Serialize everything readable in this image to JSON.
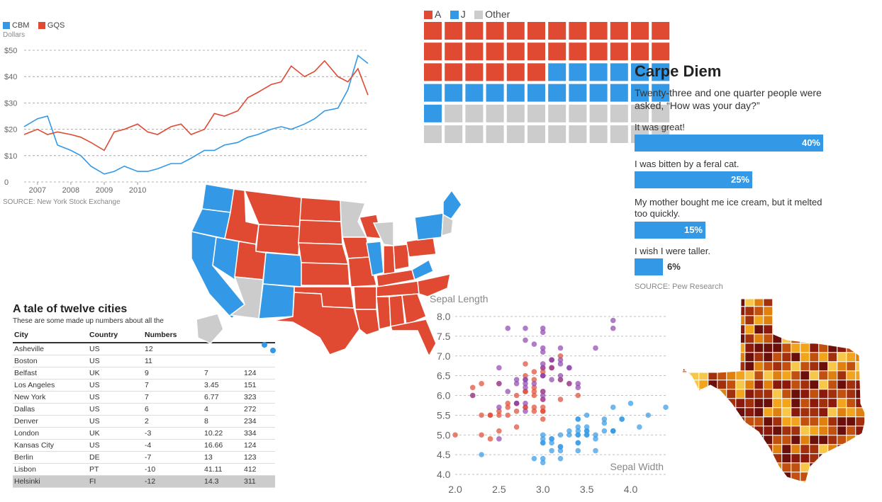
{
  "colors": {
    "red": "#e04a32",
    "blue": "#3399e6",
    "gray": "#cccccc",
    "purple": "#8e44ad"
  },
  "stock": {
    "legend": [
      {
        "name": "CBM",
        "color": "#3399e6"
      },
      {
        "name": "GQS",
        "color": "#e04a32"
      }
    ],
    "y_unit": "Dollars",
    "y_ticks": [
      "$50",
      "$40",
      "$30",
      "$20",
      "$10",
      "0"
    ],
    "x_ticks": [
      "2007",
      "2008",
      "2009",
      "2010"
    ],
    "source": "SOURCE: New York Stock Exchange"
  },
  "waffle": {
    "legend": [
      {
        "name": "A",
        "color": "#e04a32"
      },
      {
        "name": "J",
        "color": "#3399e6"
      },
      {
        "name": "Other",
        "color": "#cccccc"
      }
    ]
  },
  "survey": {
    "title": "Carpe Diem",
    "subtitle": "Twenty-three and one quarter people were asked, “How was your day?”",
    "items": [
      {
        "label": "It was great!",
        "pct": "40%",
        "value": 40
      },
      {
        "label": "I was bitten by a feral cat.",
        "pct": "25%",
        "value": 25
      },
      {
        "label": "My mother bought me ice cream, but it melted too quickly.",
        "pct": "15%",
        "value": 15
      },
      {
        "label": "I wish I were taller.",
        "pct": "6%",
        "value": 6
      }
    ],
    "source": "SOURCE: Pew Research"
  },
  "table": {
    "title": "A tale of twelve cities",
    "subtitle": "These are some made up numbers about all the",
    "headers": [
      "City",
      "Country",
      "Numbers",
      "",
      ""
    ],
    "rows": [
      [
        "Asheville",
        "US",
        "12",
        "",
        ""
      ],
      [
        "Boston",
        "US",
        "11",
        "",
        ""
      ],
      [
        "Belfast",
        "UK",
        "9",
        "7",
        "124"
      ],
      [
        "Los Angeles",
        "US",
        "7",
        "3.45",
        "151"
      ],
      [
        "New York",
        "US",
        "7",
        "6.77",
        "323"
      ],
      [
        "Dallas",
        "US",
        "6",
        "4",
        "272"
      ],
      [
        "Denver",
        "US",
        "2",
        "8",
        "234"
      ],
      [
        "London",
        "UK",
        "-3",
        "10.22",
        "334"
      ],
      [
        "Kansas City",
        "US",
        "-4",
        "16.66",
        "124"
      ],
      [
        "Berlin",
        "DE",
        "-7",
        "13",
        "123"
      ],
      [
        "Lisbon",
        "PT",
        "-10",
        "41.11",
        "412"
      ],
      [
        "Helsinki",
        "FI",
        "-12",
        "14.3",
        "311"
      ]
    ]
  },
  "scatter": {
    "ylabel": "Sepal Length",
    "xlabel": "Sepal Width",
    "y_ticks": [
      "8.0",
      "7.5",
      "7.0",
      "6.5",
      "6.0",
      "5.5",
      "5.0",
      "4.5",
      "4.0"
    ],
    "x_ticks": [
      "2.0",
      "2.5",
      "3.0",
      "3.5",
      "4.0"
    ]
  },
  "chart_data": [
    {
      "type": "line",
      "title": "",
      "ylabel": "Dollars",
      "ylim": [
        0,
        50
      ],
      "x": [
        "2006.6",
        "2007.0",
        "2007.3",
        "2007.6",
        "2008.0",
        "2008.3",
        "2008.6",
        "2009.0",
        "2009.3",
        "2009.6",
        "2010.0",
        "2010.3",
        "2010.6",
        "2011.0",
        "2011.3",
        "2011.6",
        "2012.0",
        "2012.3",
        "2012.6",
        "2013.0",
        "2013.3",
        "2013.6",
        "2014.0",
        "2014.3",
        "2014.6",
        "2015.0",
        "2015.3",
        "2015.6",
        "2016.0",
        "2016.3",
        "2016.6",
        "2016.9"
      ],
      "series": [
        {
          "name": "CBM",
          "values": [
            21,
            24,
            25,
            14,
            12,
            10,
            6,
            3,
            4,
            6,
            4,
            4,
            5,
            7,
            7,
            9,
            12,
            12,
            14,
            15,
            17,
            18,
            20,
            21,
            20,
            22,
            24,
            27,
            28,
            35,
            48,
            45
          ]
        },
        {
          "name": "GQS",
          "values": [
            18,
            20,
            18,
            19,
            18,
            17,
            15,
            12,
            19,
            20,
            22,
            19,
            18,
            21,
            22,
            18,
            20,
            26,
            25,
            27,
            32,
            34,
            37,
            38,
            44,
            40,
            42,
            46,
            40,
            38,
            43,
            33
          ]
        }
      ]
    },
    {
      "type": "bar",
      "title": "Carpe Diem",
      "categories": [
        "It was great!",
        "I was bitten by a feral cat.",
        "My mother bought me ice cream, but it melted too quickly.",
        "I wish I were taller."
      ],
      "values": [
        40,
        25,
        15,
        6
      ]
    },
    {
      "type": "bar",
      "subtype": "waffle",
      "categories": [
        "A",
        "J",
        "Other"
      ],
      "values": [
        30,
        19,
        23
      ]
    },
    {
      "type": "scatter",
      "xlabel": "Sepal Width",
      "ylabel": "Sepal Length",
      "xlim": [
        2.0,
        4.4
      ],
      "ylim": [
        4.0,
        8.0
      ],
      "series": [
        {
          "color": "#3399e6",
          "points": [
            [
              3.5,
              5.1
            ],
            [
              3.0,
              4.9
            ],
            [
              3.2,
              4.7
            ],
            [
              3.1,
              4.6
            ],
            [
              3.6,
              5.0
            ],
            [
              3.9,
              5.4
            ],
            [
              3.4,
              4.6
            ],
            [
              3.4,
              5.0
            ],
            [
              2.9,
              4.4
            ],
            [
              3.1,
              4.9
            ],
            [
              3.7,
              5.4
            ],
            [
              3.4,
              4.8
            ],
            [
              3.0,
              4.8
            ],
            [
              3.0,
              4.3
            ],
            [
              4.0,
              5.8
            ],
            [
              4.4,
              5.7
            ],
            [
              3.9,
              5.4
            ],
            [
              3.5,
              5.1
            ],
            [
              3.8,
              5.7
            ],
            [
              3.8,
              5.1
            ],
            [
              3.4,
              5.4
            ],
            [
              3.7,
              5.1
            ],
            [
              3.6,
              4.6
            ],
            [
              3.3,
              5.1
            ],
            [
              3.4,
              4.8
            ],
            [
              3.0,
              5.0
            ],
            [
              3.4,
              5.0
            ],
            [
              3.5,
              5.2
            ],
            [
              3.4,
              5.2
            ],
            [
              3.2,
              4.7
            ],
            [
              3.1,
              4.8
            ],
            [
              3.4,
              5.4
            ],
            [
              4.1,
              5.2
            ],
            [
              4.2,
              5.5
            ],
            [
              3.1,
              4.9
            ],
            [
              3.2,
              5.0
            ],
            [
              3.5,
              5.5
            ],
            [
              3.6,
              4.9
            ],
            [
              3.0,
              4.4
            ],
            [
              3.4,
              5.1
            ],
            [
              3.5,
              5.0
            ],
            [
              2.3,
              4.5
            ],
            [
              3.2,
              4.4
            ],
            [
              3.5,
              5.0
            ],
            [
              3.8,
              5.1
            ],
            [
              3.0,
              4.8
            ],
            [
              3.8,
              5.1
            ],
            [
              3.2,
              4.6
            ],
            [
              3.7,
              5.3
            ],
            [
              3.3,
              5.0
            ]
          ]
        },
        {
          "color": "#e04a32",
          "points": [
            [
              3.2,
              7.0
            ],
            [
              3.2,
              6.4
            ],
            [
              3.1,
              6.9
            ],
            [
              2.3,
              5.5
            ],
            [
              2.8,
              6.5
            ],
            [
              2.8,
              5.7
            ],
            [
              3.3,
              6.3
            ],
            [
              2.4,
              4.9
            ],
            [
              2.9,
              6.6
            ],
            [
              2.7,
              5.2
            ],
            [
              2.0,
              5.0
            ],
            [
              3.0,
              5.9
            ],
            [
              2.2,
              6.0
            ],
            [
              2.9,
              6.1
            ],
            [
              2.9,
              5.6
            ],
            [
              3.1,
              6.7
            ],
            [
              3.0,
              5.6
            ],
            [
              2.7,
              5.8
            ],
            [
              2.2,
              6.2
            ],
            [
              2.5,
              5.6
            ],
            [
              3.2,
              5.9
            ],
            [
              2.8,
              6.1
            ],
            [
              2.5,
              6.3
            ],
            [
              2.8,
              6.1
            ],
            [
              2.9,
              6.4
            ],
            [
              3.0,
              6.6
            ],
            [
              2.8,
              6.8
            ],
            [
              3.0,
              6.7
            ],
            [
              2.9,
              6.0
            ],
            [
              2.6,
              5.7
            ],
            [
              2.4,
              5.5
            ],
            [
              2.4,
              5.5
            ],
            [
              2.7,
              5.8
            ],
            [
              2.7,
              6.0
            ],
            [
              3.0,
              5.4
            ],
            [
              3.4,
              6.0
            ],
            [
              3.1,
              6.7
            ],
            [
              2.3,
              6.3
            ],
            [
              3.0,
              5.6
            ],
            [
              2.5,
              5.5
            ],
            [
              2.6,
              5.5
            ],
            [
              3.0,
              6.1
            ],
            [
              2.6,
              5.8
            ],
            [
              2.3,
              5.0
            ],
            [
              2.7,
              5.6
            ],
            [
              3.0,
              5.7
            ],
            [
              2.9,
              5.7
            ],
            [
              2.9,
              6.2
            ],
            [
              2.5,
              5.1
            ],
            [
              2.8,
              5.7
            ]
          ]
        },
        {
          "color": "#8e44ad",
          "points": [
            [
              3.3,
              6.3
            ],
            [
              2.7,
              5.8
            ],
            [
              3.0,
              7.1
            ],
            [
              2.9,
              6.3
            ],
            [
              3.0,
              6.5
            ],
            [
              3.0,
              7.6
            ],
            [
              2.5,
              4.9
            ],
            [
              2.9,
              7.3
            ],
            [
              2.5,
              6.7
            ],
            [
              3.6,
              7.2
            ],
            [
              3.2,
              6.5
            ],
            [
              2.7,
              6.4
            ],
            [
              3.0,
              6.8
            ],
            [
              2.5,
              5.7
            ],
            [
              2.8,
              5.8
            ],
            [
              3.2,
              6.4
            ],
            [
              3.0,
              6.5
            ],
            [
              3.8,
              7.7
            ],
            [
              2.6,
              7.7
            ],
            [
              2.2,
              6.0
            ],
            [
              3.2,
              6.9
            ],
            [
              2.8,
              5.6
            ],
            [
              2.8,
              7.7
            ],
            [
              2.7,
              6.3
            ],
            [
              3.3,
              6.7
            ],
            [
              3.2,
              7.2
            ],
            [
              2.8,
              6.2
            ],
            [
              3.0,
              6.1
            ],
            [
              2.8,
              6.4
            ],
            [
              3.0,
              7.2
            ],
            [
              2.8,
              7.4
            ],
            [
              3.8,
              7.9
            ],
            [
              2.8,
              6.4
            ],
            [
              2.8,
              6.3
            ],
            [
              2.6,
              6.1
            ],
            [
              3.0,
              7.7
            ],
            [
              3.4,
              6.3
            ],
            [
              3.1,
              6.4
            ],
            [
              3.0,
              6.0
            ],
            [
              3.1,
              6.9
            ],
            [
              3.1,
              6.7
            ],
            [
              3.1,
              6.9
            ],
            [
              2.7,
              5.8
            ],
            [
              3.2,
              6.8
            ],
            [
              3.3,
              6.7
            ],
            [
              3.0,
              6.7
            ],
            [
              2.5,
              6.3
            ],
            [
              3.0,
              6.5
            ],
            [
              3.4,
              6.2
            ],
            [
              3.0,
              5.9
            ]
          ]
        }
      ]
    }
  ]
}
